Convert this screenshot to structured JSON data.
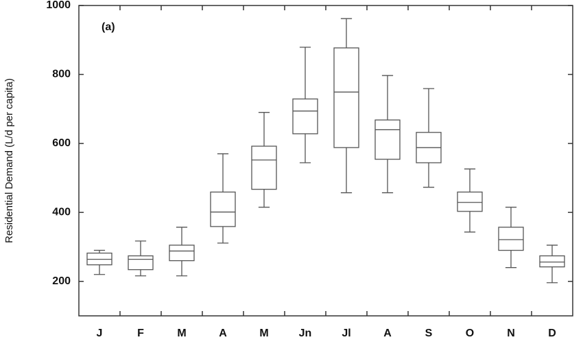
{
  "chart_data": {
    "type": "box",
    "y_label": "Residential Demand (L/d per capita)",
    "annotation": "(a)",
    "categories": [
      "J",
      "F",
      "M",
      "A",
      "M",
      "Jn",
      "Jl",
      "A",
      "S",
      "O",
      "N",
      "D"
    ],
    "min": [
      220,
      216,
      216,
      311,
      415,
      544,
      457,
      457,
      473,
      343,
      240,
      196
    ],
    "q1": [
      248,
      234,
      260,
      359,
      467,
      628,
      588,
      554,
      544,
      403,
      290,
      242
    ],
    "median": [
      264,
      264,
      288,
      401,
      552,
      694,
      749,
      640,
      588,
      429,
      321,
      256
    ],
    "q3": [
      282,
      274,
      305,
      459,
      592,
      729,
      877,
      668,
      632,
      459,
      357,
      274
    ],
    "max": [
      290,
      317,
      357,
      570,
      690,
      879,
      962,
      797,
      759,
      526,
      415,
      305
    ],
    "color": "#555555",
    "ylim": [
      100,
      1000
    ],
    "yticks": [
      200,
      400,
      600,
      800,
      1000
    ]
  }
}
